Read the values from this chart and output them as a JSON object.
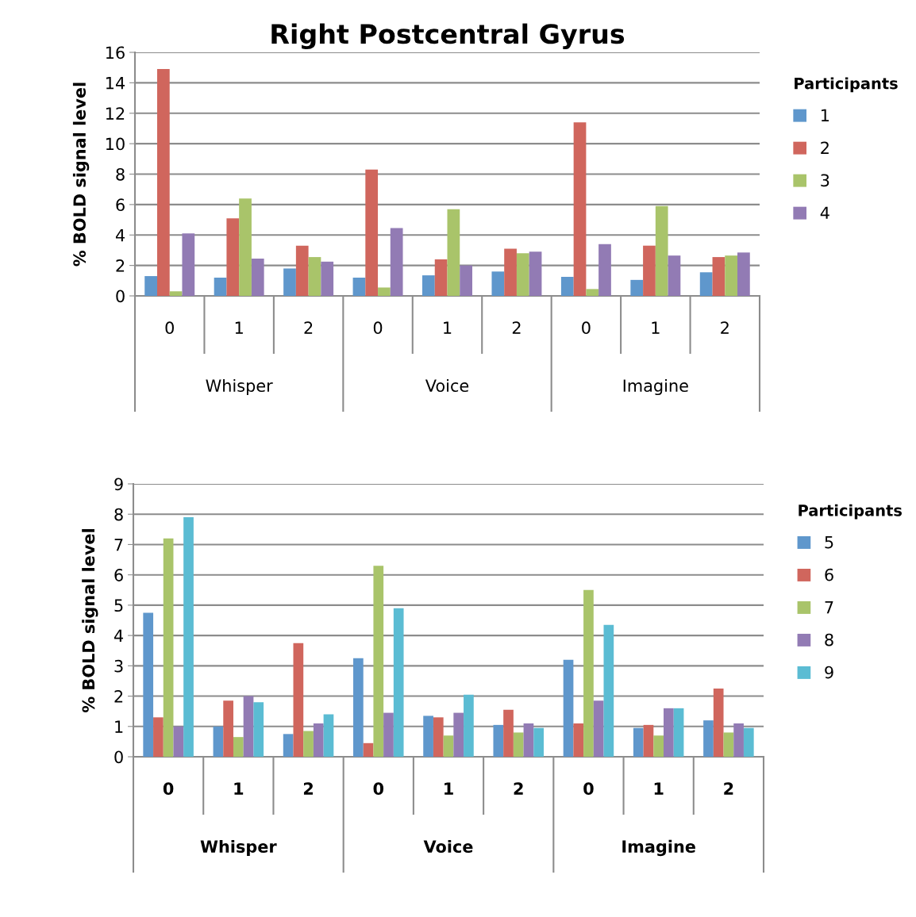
{
  "chart_data": [
    {
      "type": "bar",
      "title": "Right Postcentral Gyrus",
      "ylabel": "% BOLD signal level",
      "legend_title": "Participants",
      "categories": [
        "0",
        "1",
        "2",
        "0",
        "1",
        "2",
        "0",
        "1",
        "2"
      ],
      "annotations": [
        "Whisper",
        "Voice",
        "Imagine"
      ],
      "series": [
        {
          "name": "1",
          "color": "#5f97cc",
          "values": [
            1.3,
            1.2,
            1.8,
            1.2,
            1.35,
            1.6,
            1.25,
            1.05,
            1.55
          ]
        },
        {
          "name": "2",
          "color": "#d0665d",
          "values": [
            14.9,
            5.1,
            3.3,
            8.3,
            2.4,
            3.1,
            11.4,
            3.3,
            2.55
          ]
        },
        {
          "name": "3",
          "color": "#a9c46a",
          "values": [
            0.3,
            6.4,
            2.55,
            0.55,
            5.7,
            2.8,
            0.45,
            5.9,
            2.65
          ]
        },
        {
          "name": "4",
          "color": "#927bb4",
          "values": [
            4.1,
            2.45,
            2.25,
            4.45,
            2.0,
            2.9,
            3.4,
            2.65,
            2.85
          ]
        }
      ],
      "ylim": [
        0,
        16
      ],
      "yticks": [
        0,
        2,
        4,
        6,
        8,
        10,
        12,
        14,
        16
      ],
      "grid": "y",
      "legend": "right"
    },
    {
      "type": "bar",
      "ylabel": "% BOLD signal level",
      "legend_title": "Participants",
      "categories": [
        "0",
        "1",
        "2",
        "0",
        "1",
        "2",
        "0",
        "1",
        "2"
      ],
      "annotations": [
        "Whisper",
        "Voice",
        "Imagine"
      ],
      "series": [
        {
          "name": "5",
          "color": "#5f97cc",
          "values": [
            4.75,
            1.0,
            0.75,
            3.25,
            1.35,
            1.05,
            3.2,
            0.95,
            1.2
          ]
        },
        {
          "name": "6",
          "color": "#d0665d",
          "values": [
            1.3,
            1.85,
            3.75,
            0.45,
            1.3,
            1.55,
            1.1,
            1.05,
            2.25
          ]
        },
        {
          "name": "7",
          "color": "#a9c46a",
          "values": [
            7.2,
            0.65,
            0.85,
            6.3,
            0.7,
            0.8,
            5.5,
            0.7,
            0.8
          ]
        },
        {
          "name": "8",
          "color": "#927bb4",
          "values": [
            1.0,
            2.0,
            1.1,
            1.45,
            1.45,
            1.1,
            1.85,
            1.6,
            1.1
          ]
        },
        {
          "name": "9",
          "color": "#5bbcd3",
          "values": [
            7.9,
            1.8,
            1.4,
            4.9,
            2.05,
            0.95,
            4.35,
            1.6,
            0.95
          ]
        }
      ],
      "ylim": [
        0,
        9
      ],
      "yticks": [
        0,
        1,
        2,
        3,
        4,
        5,
        6,
        7,
        8,
        9
      ],
      "grid": "y",
      "legend": "right"
    }
  ]
}
